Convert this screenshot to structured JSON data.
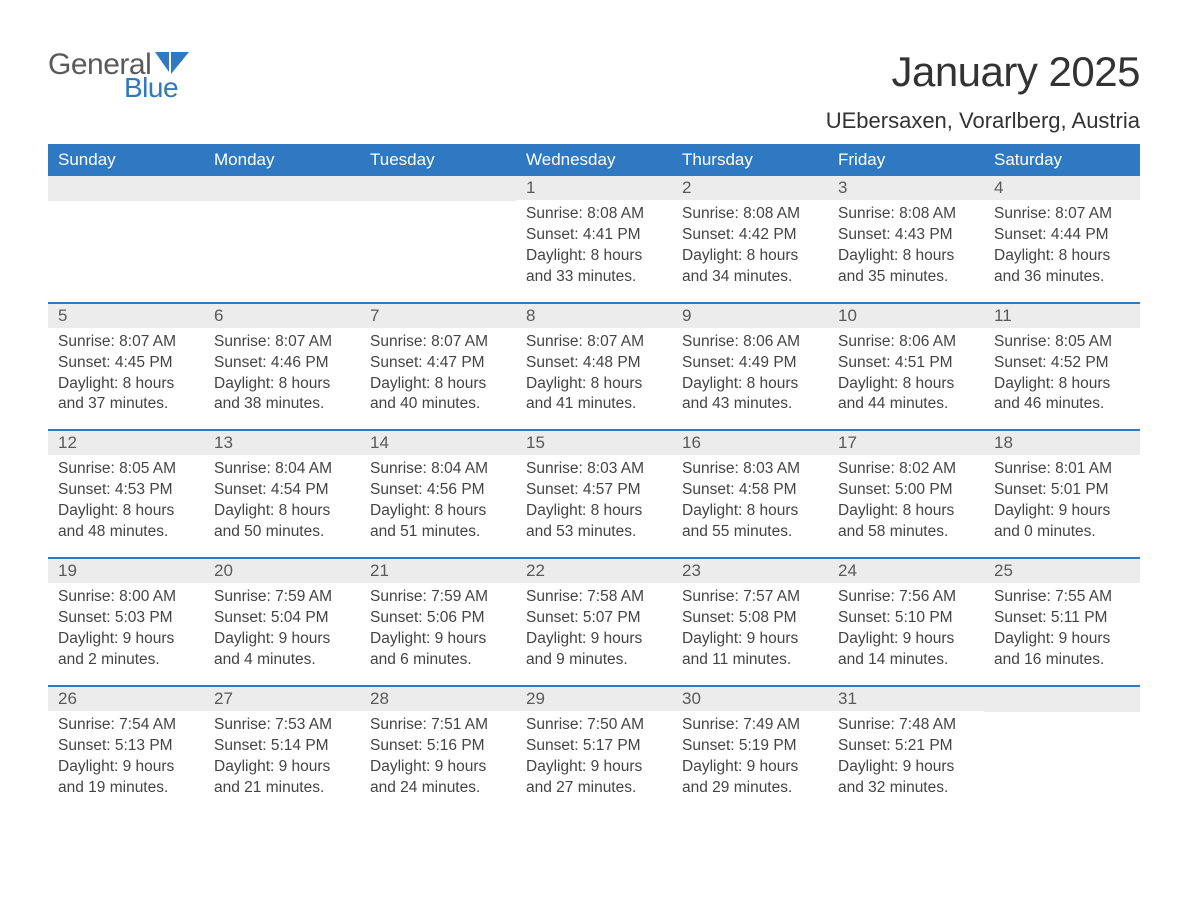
{
  "logo": {
    "text_general": "General",
    "text_blue": "Blue",
    "icon_color": "#2f78c2"
  },
  "header": {
    "month_title": "January 2025",
    "location": "UEbersaxen, Vorarlberg, Austria"
  },
  "colors": {
    "brand_blue": "#2f78c2",
    "header_text": "#333333",
    "cell_text": "#444444",
    "daynum_bg": "#ececec",
    "white": "#ffffff"
  },
  "day_labels": [
    "Sunday",
    "Monday",
    "Tuesday",
    "Wednesday",
    "Thursday",
    "Friday",
    "Saturday"
  ],
  "weeks": [
    [
      {
        "n": "",
        "sr": "",
        "ss": "",
        "dl1": "",
        "dl2": ""
      },
      {
        "n": "",
        "sr": "",
        "ss": "",
        "dl1": "",
        "dl2": ""
      },
      {
        "n": "",
        "sr": "",
        "ss": "",
        "dl1": "",
        "dl2": ""
      },
      {
        "n": "1",
        "sr": "Sunrise: 8:08 AM",
        "ss": "Sunset: 4:41 PM",
        "dl1": "Daylight: 8 hours",
        "dl2": "and 33 minutes."
      },
      {
        "n": "2",
        "sr": "Sunrise: 8:08 AM",
        "ss": "Sunset: 4:42 PM",
        "dl1": "Daylight: 8 hours",
        "dl2": "and 34 minutes."
      },
      {
        "n": "3",
        "sr": "Sunrise: 8:08 AM",
        "ss": "Sunset: 4:43 PM",
        "dl1": "Daylight: 8 hours",
        "dl2": "and 35 minutes."
      },
      {
        "n": "4",
        "sr": "Sunrise: 8:07 AM",
        "ss": "Sunset: 4:44 PM",
        "dl1": "Daylight: 8 hours",
        "dl2": "and 36 minutes."
      }
    ],
    [
      {
        "n": "5",
        "sr": "Sunrise: 8:07 AM",
        "ss": "Sunset: 4:45 PM",
        "dl1": "Daylight: 8 hours",
        "dl2": "and 37 minutes."
      },
      {
        "n": "6",
        "sr": "Sunrise: 8:07 AM",
        "ss": "Sunset: 4:46 PM",
        "dl1": "Daylight: 8 hours",
        "dl2": "and 38 minutes."
      },
      {
        "n": "7",
        "sr": "Sunrise: 8:07 AM",
        "ss": "Sunset: 4:47 PM",
        "dl1": "Daylight: 8 hours",
        "dl2": "and 40 minutes."
      },
      {
        "n": "8",
        "sr": "Sunrise: 8:07 AM",
        "ss": "Sunset: 4:48 PM",
        "dl1": "Daylight: 8 hours",
        "dl2": "and 41 minutes."
      },
      {
        "n": "9",
        "sr": "Sunrise: 8:06 AM",
        "ss": "Sunset: 4:49 PM",
        "dl1": "Daylight: 8 hours",
        "dl2": "and 43 minutes."
      },
      {
        "n": "10",
        "sr": "Sunrise: 8:06 AM",
        "ss": "Sunset: 4:51 PM",
        "dl1": "Daylight: 8 hours",
        "dl2": "and 44 minutes."
      },
      {
        "n": "11",
        "sr": "Sunrise: 8:05 AM",
        "ss": "Sunset: 4:52 PM",
        "dl1": "Daylight: 8 hours",
        "dl2": "and 46 minutes."
      }
    ],
    [
      {
        "n": "12",
        "sr": "Sunrise: 8:05 AM",
        "ss": "Sunset: 4:53 PM",
        "dl1": "Daylight: 8 hours",
        "dl2": "and 48 minutes."
      },
      {
        "n": "13",
        "sr": "Sunrise: 8:04 AM",
        "ss": "Sunset: 4:54 PM",
        "dl1": "Daylight: 8 hours",
        "dl2": "and 50 minutes."
      },
      {
        "n": "14",
        "sr": "Sunrise: 8:04 AM",
        "ss": "Sunset: 4:56 PM",
        "dl1": "Daylight: 8 hours",
        "dl2": "and 51 minutes."
      },
      {
        "n": "15",
        "sr": "Sunrise: 8:03 AM",
        "ss": "Sunset: 4:57 PM",
        "dl1": "Daylight: 8 hours",
        "dl2": "and 53 minutes."
      },
      {
        "n": "16",
        "sr": "Sunrise: 8:03 AM",
        "ss": "Sunset: 4:58 PM",
        "dl1": "Daylight: 8 hours",
        "dl2": "and 55 minutes."
      },
      {
        "n": "17",
        "sr": "Sunrise: 8:02 AM",
        "ss": "Sunset: 5:00 PM",
        "dl1": "Daylight: 8 hours",
        "dl2": "and 58 minutes."
      },
      {
        "n": "18",
        "sr": "Sunrise: 8:01 AM",
        "ss": "Sunset: 5:01 PM",
        "dl1": "Daylight: 9 hours",
        "dl2": "and 0 minutes."
      }
    ],
    [
      {
        "n": "19",
        "sr": "Sunrise: 8:00 AM",
        "ss": "Sunset: 5:03 PM",
        "dl1": "Daylight: 9 hours",
        "dl2": "and 2 minutes."
      },
      {
        "n": "20",
        "sr": "Sunrise: 7:59 AM",
        "ss": "Sunset: 5:04 PM",
        "dl1": "Daylight: 9 hours",
        "dl2": "and 4 minutes."
      },
      {
        "n": "21",
        "sr": "Sunrise: 7:59 AM",
        "ss": "Sunset: 5:06 PM",
        "dl1": "Daylight: 9 hours",
        "dl2": "and 6 minutes."
      },
      {
        "n": "22",
        "sr": "Sunrise: 7:58 AM",
        "ss": "Sunset: 5:07 PM",
        "dl1": "Daylight: 9 hours",
        "dl2": "and 9 minutes."
      },
      {
        "n": "23",
        "sr": "Sunrise: 7:57 AM",
        "ss": "Sunset: 5:08 PM",
        "dl1": "Daylight: 9 hours",
        "dl2": "and 11 minutes."
      },
      {
        "n": "24",
        "sr": "Sunrise: 7:56 AM",
        "ss": "Sunset: 5:10 PM",
        "dl1": "Daylight: 9 hours",
        "dl2": "and 14 minutes."
      },
      {
        "n": "25",
        "sr": "Sunrise: 7:55 AM",
        "ss": "Sunset: 5:11 PM",
        "dl1": "Daylight: 9 hours",
        "dl2": "and 16 minutes."
      }
    ],
    [
      {
        "n": "26",
        "sr": "Sunrise: 7:54 AM",
        "ss": "Sunset: 5:13 PM",
        "dl1": "Daylight: 9 hours",
        "dl2": "and 19 minutes."
      },
      {
        "n": "27",
        "sr": "Sunrise: 7:53 AM",
        "ss": "Sunset: 5:14 PM",
        "dl1": "Daylight: 9 hours",
        "dl2": "and 21 minutes."
      },
      {
        "n": "28",
        "sr": "Sunrise: 7:51 AM",
        "ss": "Sunset: 5:16 PM",
        "dl1": "Daylight: 9 hours",
        "dl2": "and 24 minutes."
      },
      {
        "n": "29",
        "sr": "Sunrise: 7:50 AM",
        "ss": "Sunset: 5:17 PM",
        "dl1": "Daylight: 9 hours",
        "dl2": "and 27 minutes."
      },
      {
        "n": "30",
        "sr": "Sunrise: 7:49 AM",
        "ss": "Sunset: 5:19 PM",
        "dl1": "Daylight: 9 hours",
        "dl2": "and 29 minutes."
      },
      {
        "n": "31",
        "sr": "Sunrise: 7:48 AM",
        "ss": "Sunset: 5:21 PM",
        "dl1": "Daylight: 9 hours",
        "dl2": "and 32 minutes."
      },
      {
        "n": "",
        "sr": "",
        "ss": "",
        "dl1": "",
        "dl2": ""
      }
    ]
  ]
}
